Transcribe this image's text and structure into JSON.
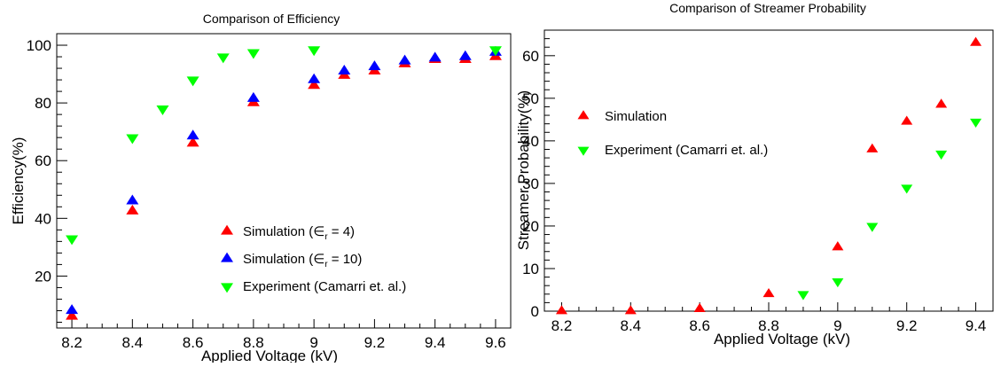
{
  "chart_data": [
    {
      "type": "scatter",
      "title": "Comparison of Efficiency",
      "xlabel": "Applied Voltage (kV)",
      "ylabel": "Efficiency(%)",
      "xlim": [
        8.15,
        9.65
      ],
      "ylim": [
        2,
        104
      ],
      "xticks": [
        "8.2",
        "8.4",
        "8.6",
        "8.8",
        "9",
        "9.2",
        "9.4",
        "9.6"
      ],
      "yticks": [
        "20",
        "40",
        "60",
        "80",
        "100"
      ],
      "legend_position": "bottom-right",
      "series": [
        {
          "name": "Simulation (εr = 4)",
          "label_main": "Simulation (",
          "label_eps": "∈",
          "label_sub": "r",
          "label_tail": " = 4)",
          "marker": "triangle-up",
          "color": "#ff0000",
          "x": [
            8.2,
            8.4,
            8.6,
            8.8,
            9.0,
            9.1,
            9.2,
            9.3,
            9.4,
            9.5,
            9.6
          ],
          "y": [
            6,
            42.5,
            66,
            80,
            86,
            89.5,
            91,
            93.5,
            95,
            95,
            96
          ]
        },
        {
          "name": "Simulation (εr = 10)",
          "label_main": "Simulation (",
          "label_eps": "∈",
          "label_sub": "r",
          "label_tail": " = 10)",
          "marker": "triangle-up",
          "color": "#0000ff",
          "x": [
            8.2,
            8.4,
            8.6,
            8.8,
            9.0,
            9.1,
            9.2,
            9.3,
            9.4,
            9.5,
            9.6
          ],
          "y": [
            8,
            46,
            68.5,
            81.5,
            88,
            91,
            92.5,
            94.5,
            95.5,
            96,
            97.5
          ]
        },
        {
          "name": "Experiment (Camarri et. al.)",
          "label_main": "Experiment (Camarri et. al.)",
          "marker": "triangle-down",
          "color": "#00ff00",
          "x": [
            8.2,
            8.4,
            8.5,
            8.6,
            8.7,
            8.8,
            9.0,
            9.6
          ],
          "y": [
            33,
            68,
            78,
            88,
            96,
            97.5,
            98.5,
            98.5
          ]
        }
      ]
    },
    {
      "type": "scatter",
      "title": "Comparison of Streamer Probability",
      "xlabel": "Applied Voltage (kV)",
      "ylabel": "Streamer Probability(%)",
      "xlim": [
        8.15,
        9.45
      ],
      "ylim": [
        0,
        66
      ],
      "xticks": [
        "8.2",
        "8.4",
        "8.6",
        "8.8",
        "9",
        "9.2",
        "9.4"
      ],
      "yticks": [
        "0",
        "10",
        "20",
        "30",
        "40",
        "50",
        "60"
      ],
      "legend_position": "top-left",
      "series": [
        {
          "name": "Simulation",
          "label_main": "Simulation",
          "marker": "triangle-up",
          "color": "#ff0000",
          "x": [
            8.2,
            8.4,
            8.6,
            8.8,
            9.0,
            9.1,
            9.2,
            9.3,
            9.4
          ],
          "y": [
            0,
            0,
            0.5,
            4,
            15,
            38,
            44.5,
            48.5,
            63
          ]
        },
        {
          "name": "Experiment (Camarri et. al.)",
          "label_main": "Experiment (Camarri et. al.)",
          "marker": "triangle-down",
          "color": "#00ff00",
          "x": [
            8.9,
            9.0,
            9.1,
            9.2,
            9.3,
            9.4
          ],
          "y": [
            4,
            7,
            20,
            29,
            37,
            44.5
          ]
        }
      ]
    }
  ]
}
